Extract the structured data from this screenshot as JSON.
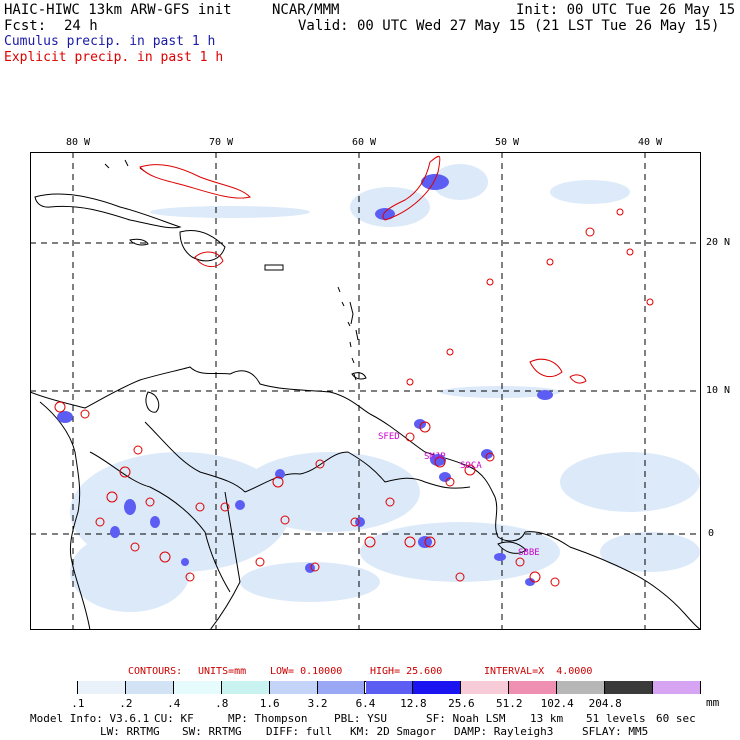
{
  "header": {
    "model": "HAIC-HIWC 13km ARW-GFS init",
    "org": "NCAR/MMM",
    "init": "Init: 00 UTC Tue 26 May 15",
    "fcst_label": "Fcst:",
    "fcst_value": "24 h",
    "valid": "Valid: 00 UTC Wed 27 May 15 (21 LST Tue 26 May 15)",
    "cumulus": "Cumulus precip. in past 1 h",
    "explicit": "Explicit precip. in past 1 h"
  },
  "map": {
    "lon_labels": [
      "80 W",
      "70 W",
      "60 W",
      "50 W",
      "40 W"
    ],
    "lat_labels": [
      "20 N",
      "10 N",
      "0"
    ],
    "station_labels": [
      "SFED",
      "SMJP",
      "SOCA",
      "SBBE"
    ]
  },
  "contours": {
    "label": "CONTOURS:",
    "units": "UNITS=mm",
    "low": "LOW= 0.10000",
    "high": "HIGH= 25.600",
    "interval": "INTERVAL=X  4.0000"
  },
  "colorbar": {
    "colors": [
      "#ffffff",
      "#e9f1fb",
      "#d2e3f6",
      "#e6fbfb",
      "#c9f3f1",
      "#c4d4f8",
      "#9aa7f5",
      "#5c5ef3",
      "#1a14f1",
      "#f7cbd8",
      "#ef8fb1",
      "#b7b7b7",
      "#3a3a3a",
      "#d7a4f4"
    ],
    "labels": [
      ".1",
      ".2",
      ".4",
      ".8",
      "1.6",
      "3.2",
      "6.4",
      "12.8",
      "25.6",
      "51.2",
      "102.4",
      "204.8"
    ],
    "unit": "mm"
  },
  "model_info": {
    "line1": [
      "Model Info: V3.6.1",
      "CU: KF",
      "MP: Thompson",
      "PBL: YSU",
      "SF: Noah LSM",
      "13 km",
      "51 levels",
      "60 sec"
    ],
    "line2": [
      "LW: RRTMG",
      "SW: RRTMG",
      "DIFF: full",
      "KM: 2D Smagor",
      "DAMP: Rayleigh3",
      "SFLAY: MM5"
    ]
  }
}
